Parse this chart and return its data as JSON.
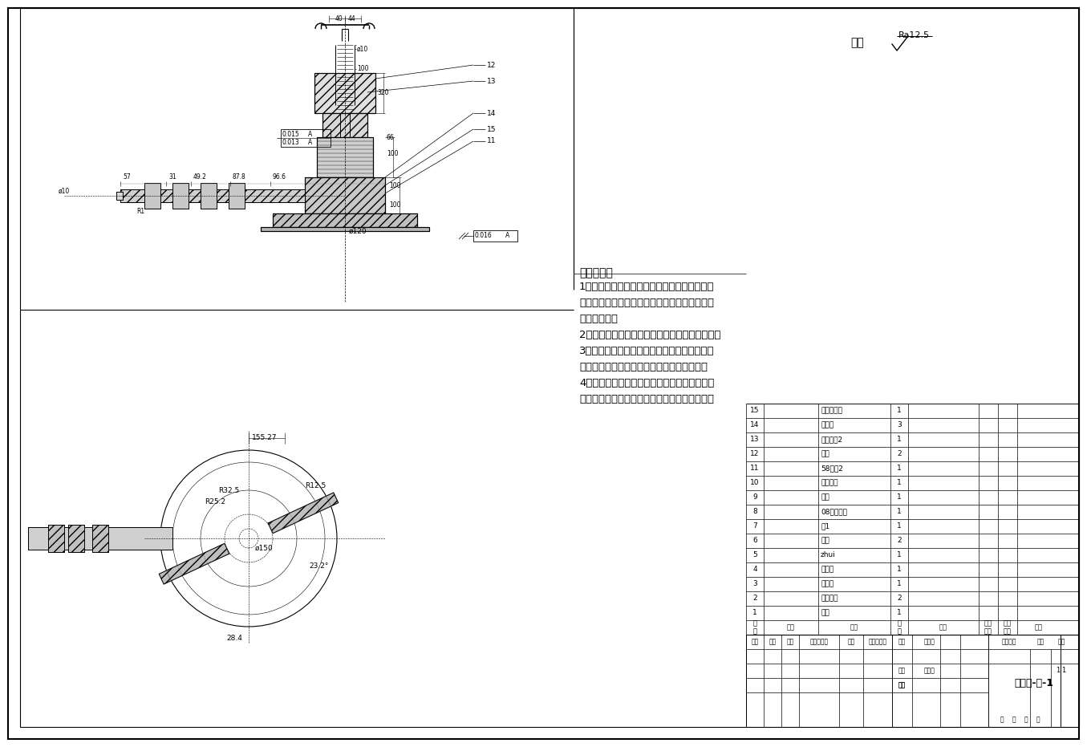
{
  "title": "装配体-了-1",
  "surface_finish_label": "其余",
  "surface_finish_value": "Ra12.5",
  "tech_requirements_title": "技术要求：",
  "tech_requirements": [
    "1、零件在装配前必须清理和清洗干净，不得有",
    "毛刺、飞边、氧化皮、锈蚀、切层、油污、着色",
    "剂和灰尘等；",
    "2、装配过程中零件不允许磕、碰、划伤和锈蚀；",
    "3、同一零件用多件螺钉（螺栓）紧固时，各螺",
    "钉（螺栓）需交叉、对称、逐步、均匀拧紧；",
    "4、装配前严格检查并清楚零件加工时残留的锐",
    "角、毛刺和异物。保证密封件装入时不被擦伤。"
  ],
  "bom_rows": [
    {
      "seq": "15",
      "name": "刀盘锥齿轮",
      "qty": "1"
    },
    {
      "seq": "14",
      "name": "轴承座",
      "qty": "3"
    },
    {
      "seq": "13",
      "name": "推力轴承2",
      "qty": "1"
    },
    {
      "seq": "12",
      "name": "升降",
      "qty": "2"
    },
    {
      "seq": "11",
      "name": "58手轮2",
      "qty": "1"
    },
    {
      "seq": "10",
      "name": "升降螺杆",
      "qty": "1"
    },
    {
      "seq": "9",
      "name": "螺母",
      "qty": "1"
    },
    {
      "seq": "8",
      "name": "08联轴器二",
      "qty": "1"
    },
    {
      "seq": "7",
      "name": "轴1",
      "qty": "1"
    },
    {
      "seq": "6",
      "name": "刀片",
      "qty": "2"
    },
    {
      "seq": "5",
      "name": "zhui",
      "qty": "1"
    },
    {
      "seq": "4",
      "name": "外套轴",
      "qty": "1"
    },
    {
      "seq": "3",
      "name": "刀盘轴",
      "qty": "1"
    },
    {
      "seq": "2",
      "name": "套轴固定",
      "qty": "2"
    },
    {
      "seq": "1",
      "name": "刀盘",
      "qty": "1"
    }
  ],
  "bg_color": "#ffffff"
}
